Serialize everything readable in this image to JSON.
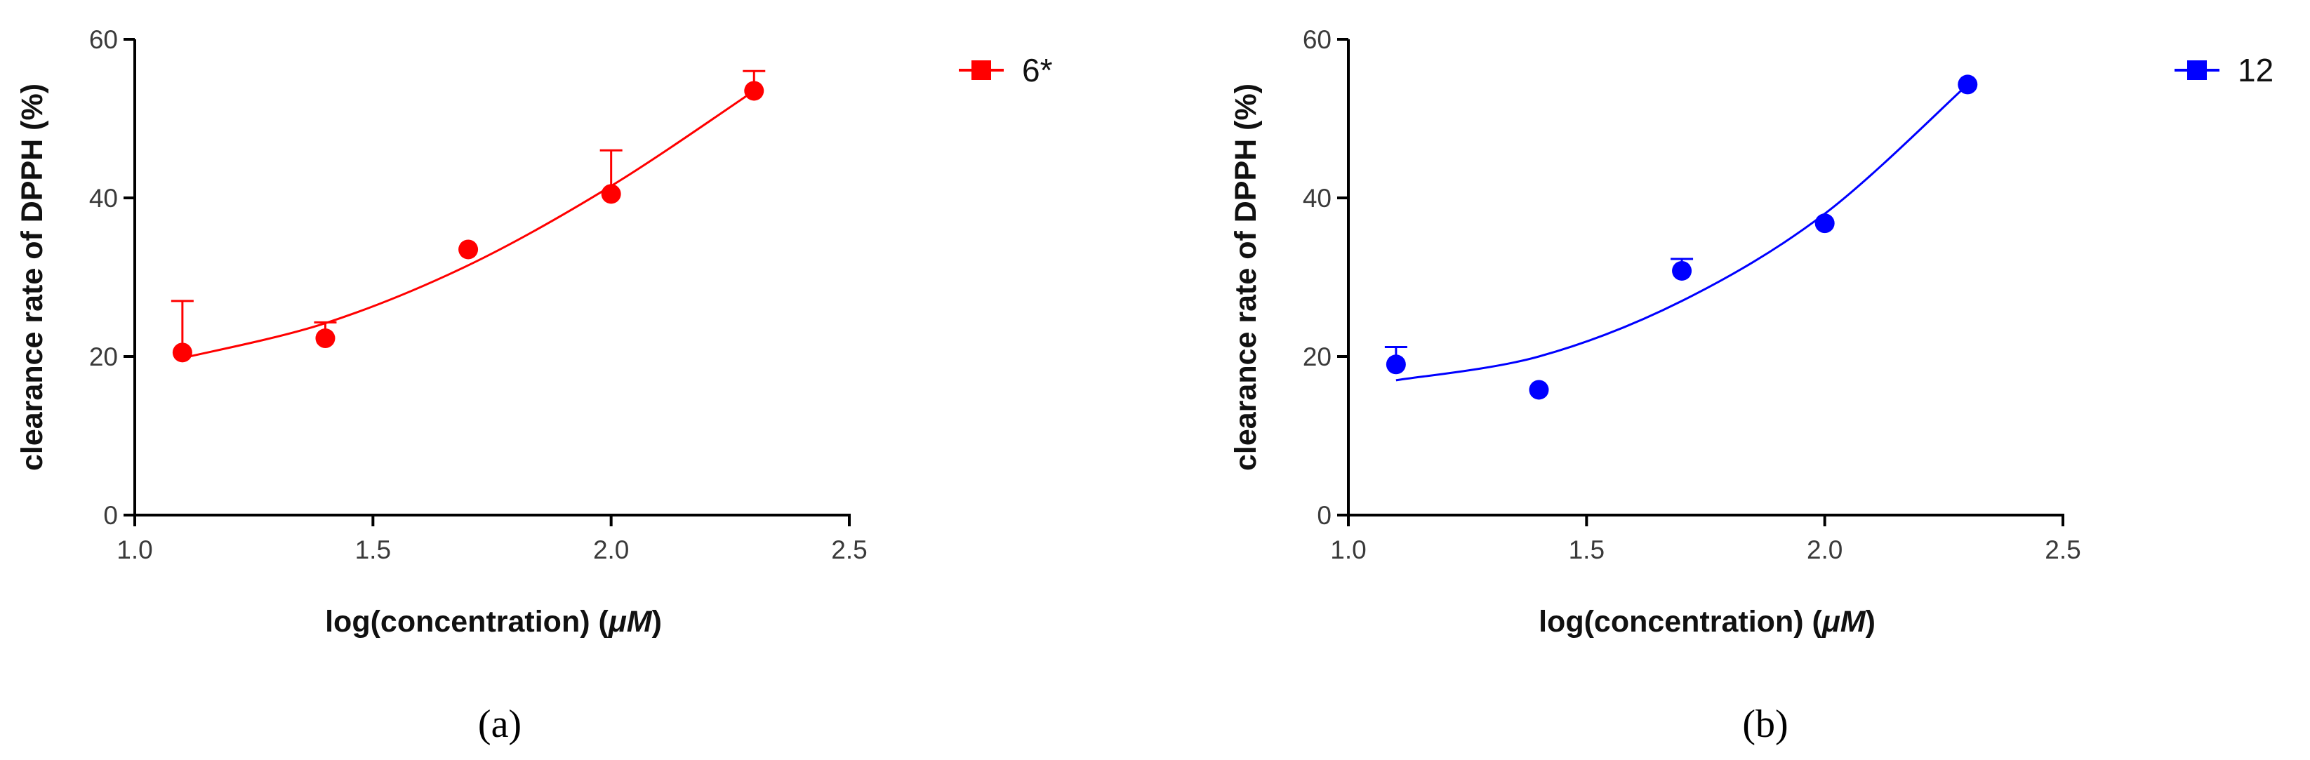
{
  "chart_data": [
    {
      "type": "scatter",
      "panel_caption": "(a)",
      "xlabel_prefix": "log(concentration) (",
      "xlabel_unit": "μM",
      "xlabel_suffix": ")",
      "ylabel": "clearance rate of DPPH (%)",
      "xlim": [
        1.0,
        2.5
      ],
      "ylim": [
        0,
        60
      ],
      "xticks": [
        1.0,
        1.5,
        2.0,
        2.5
      ],
      "yticks": [
        0,
        20,
        40,
        60
      ],
      "xtick_labels": [
        "1.0",
        "1.5",
        "2.0",
        "2.5"
      ],
      "ytick_labels": [
        "0",
        "20",
        "40",
        "60"
      ],
      "grid": false,
      "legend_position": "top-right",
      "color": "#ff0000",
      "series": [
        {
          "name": "6*",
          "x": [
            1.1,
            1.4,
            1.7,
            2.0,
            2.3
          ],
          "y": [
            20.5,
            22.3,
            33.5,
            40.5,
            53.5
          ],
          "error_upper": [
            6.5,
            2.0,
            0.3,
            5.5,
            2.5
          ],
          "fit_curve": {
            "x": [
              1.1,
              1.4,
              1.7,
              2.0,
              2.3
            ],
            "y": [
              19.8,
              24.2,
              31.5,
              41.5,
              53.5
            ]
          }
        }
      ]
    },
    {
      "type": "scatter",
      "panel_caption": "(b)",
      "xlabel_prefix": "log(concentration) (",
      "xlabel_unit": "μM",
      "xlabel_suffix": ")",
      "ylabel": "clearance rate of DPPH (%)",
      "xlim": [
        1.0,
        2.5
      ],
      "ylim": [
        0,
        60
      ],
      "xticks": [
        1.0,
        1.5,
        2.0,
        2.5
      ],
      "yticks": [
        0,
        20,
        40,
        60
      ],
      "xtick_labels": [
        "1.0",
        "1.5",
        "2.0",
        "2.5"
      ],
      "ytick_labels": [
        "0",
        "20",
        "40",
        "60"
      ],
      "grid": false,
      "legend_position": "top-right",
      "color": "#0000ff",
      "series": [
        {
          "name": "12",
          "x": [
            1.1,
            1.4,
            1.7,
            2.0,
            2.3
          ],
          "y": [
            19.0,
            15.8,
            30.8,
            36.8,
            54.3
          ],
          "error_upper": [
            2.2,
            0.3,
            1.5,
            0.3,
            0.3
          ],
          "fit_curve": {
            "x": [
              1.1,
              1.4,
              1.7,
              2.0,
              2.3
            ],
            "y": [
              17.0,
              20.0,
              27.0,
              38.0,
              54.3
            ]
          }
        }
      ]
    }
  ]
}
